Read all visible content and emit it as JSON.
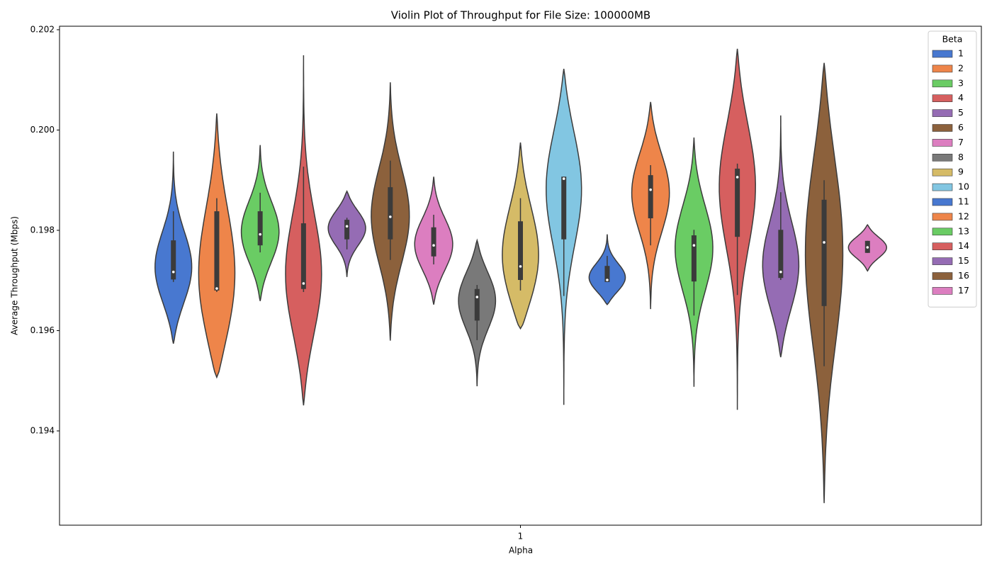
{
  "chart_data": {
    "type": "violin",
    "title": "Violin Plot of Throughput for File Size: 100000MB",
    "x_label": "Alpha",
    "y_label": "Average Throughput (Mbps)",
    "categories": [
      "1"
    ],
    "ylim": [
      0.19212,
      0.20207
    ],
    "yticks": [
      0.194,
      0.196,
      0.198,
      {
        "value": 0.2,
        "label": "0.200"
      },
      0.202
    ],
    "legend_title": "Beta",
    "legend": "upper right",
    "series": [
      {
        "name": "1",
        "color": "#4878d0",
        "min": 0.19574,
        "whisker_low": 0.19697,
        "q1": 0.19702,
        "median": 0.19717,
        "q3": 0.1978,
        "whisker_high": 0.19838,
        "max": 0.19957
      },
      {
        "name": "2",
        "color": "#ee854a",
        "min": 0.19507,
        "whisker_low": 0.19677,
        "q1": 0.1968,
        "median": 0.19684,
        "q3": 0.19838,
        "whisker_high": 0.19864,
        "max": 0.20033
      },
      {
        "name": "3",
        "color": "#6acc64",
        "min": 0.19659,
        "whisker_low": 0.19756,
        "q1": 0.1977,
        "median": 0.19792,
        "q3": 0.19838,
        "whisker_high": 0.19875,
        "max": 0.1997
      },
      {
        "name": "4",
        "color": "#d65f5f",
        "min": 0.19451,
        "whisker_low": 0.19677,
        "q1": 0.19683,
        "median": 0.19694,
        "q3": 0.19814,
        "whisker_high": 0.19927,
        "max": 0.20149
      },
      {
        "name": "5",
        "color": "#956cb4",
        "min": 0.19707,
        "whisker_low": 0.19762,
        "q1": 0.19782,
        "median": 0.19808,
        "q3": 0.19821,
        "whisker_high": 0.19825,
        "max": 0.19878
      },
      {
        "name": "6",
        "color": "#8c613c",
        "min": 0.1958,
        "whisker_low": 0.19741,
        "q1": 0.19782,
        "median": 0.19827,
        "q3": 0.19886,
        "whisker_high": 0.19939,
        "max": 0.20095
      },
      {
        "name": "7",
        "color": "#dc7ec0",
        "min": 0.19652,
        "whisker_low": 0.19732,
        "q1": 0.19748,
        "median": 0.1977,
        "q3": 0.19806,
        "whisker_high": 0.19831,
        "max": 0.19907
      },
      {
        "name": "8",
        "color": "#797979",
        "min": 0.19489,
        "whisker_low": 0.19581,
        "q1": 0.1962,
        "median": 0.19667,
        "q3": 0.19683,
        "whisker_high": 0.19691,
        "max": 0.1978
      },
      {
        "name": "9",
        "color": "#d5bb67",
        "min": 0.19604,
        "whisker_low": 0.1968,
        "q1": 0.19701,
        "median": 0.19728,
        "q3": 0.19818,
        "whisker_high": 0.19864,
        "max": 0.19975
      },
      {
        "name": "10",
        "color": "#82c6e2",
        "min": 0.19452,
        "whisker_low": 0.19669,
        "q1": 0.19782,
        "median": 0.19903,
        "q3": 0.19907,
        "whisker_high": 0.19907,
        "max": 0.20122
      },
      {
        "name": "11",
        "color": "#4878d0",
        "min": 0.19652,
        "whisker_low": 0.19697,
        "q1": 0.19697,
        "median": 0.19701,
        "q3": 0.19729,
        "whisker_high": 0.19749,
        "max": 0.19792
      },
      {
        "name": "12",
        "color": "#ee854a",
        "min": 0.19643,
        "whisker_low": 0.1977,
        "q1": 0.19824,
        "median": 0.19881,
        "q3": 0.1991,
        "whisker_high": 0.1993,
        "max": 0.20056
      },
      {
        "name": "13",
        "color": "#6acc64",
        "min": 0.19488,
        "whisker_low": 0.1963,
        "q1": 0.19698,
        "median": 0.1977,
        "q3": 0.1979,
        "whisker_high": 0.19801,
        "max": 0.19985
      },
      {
        "name": "14",
        "color": "#d65f5f",
        "min": 0.19442,
        "whisker_low": 0.19671,
        "q1": 0.19787,
        "median": 0.19906,
        "q3": 0.19923,
        "whisker_high": 0.19933,
        "max": 0.20162
      },
      {
        "name": "15",
        "color": "#956cb4",
        "min": 0.19547,
        "whisker_low": 0.19701,
        "q1": 0.19705,
        "median": 0.19717,
        "q3": 0.19801,
        "whisker_high": 0.19876,
        "max": 0.20029
      },
      {
        "name": "16",
        "color": "#8c613c",
        "min": 0.19256,
        "whisker_low": 0.19529,
        "q1": 0.19649,
        "median": 0.19776,
        "q3": 0.19861,
        "whisker_high": 0.199,
        "max": 0.20134
      },
      {
        "name": "17",
        "color": "#dc7ec0",
        "min": 0.19719,
        "whisker_low": 0.19755,
        "q1": 0.19755,
        "median": 0.19766,
        "q3": 0.19779,
        "whisker_high": 0.19779,
        "max": 0.19811
      }
    ]
  }
}
